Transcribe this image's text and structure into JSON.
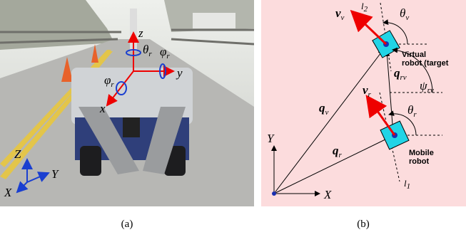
{
  "panel_a": {
    "robot_axes": {
      "z": "z",
      "theta": {
        "sym": "θ",
        "sub": "r"
      },
      "phi_right": {
        "sym": "φ",
        "sub": "r"
      },
      "y": "y",
      "phi_left": {
        "sym": "φ",
        "sub": "r"
      },
      "x": "x"
    },
    "world_axes": {
      "Z": "Z",
      "Y": "Y",
      "X": "X"
    }
  },
  "panel_b": {
    "v_v": {
      "sym": "v",
      "sub": "v"
    },
    "l_2": {
      "sym": "l",
      "sub": "2"
    },
    "theta_v": {
      "sym": "θ",
      "sub": "v"
    },
    "virtual_robot": [
      "Virtual",
      "robot (target"
    ],
    "q_rv": {
      "sym": "q",
      "sub": "rv"
    },
    "v_r": {
      "sym": "v",
      "sub": "r"
    },
    "psi_rv": {
      "sym": "ψ",
      "sub": "rv"
    },
    "theta_r": {
      "sym": "θ",
      "sub": "r"
    },
    "q_v": {
      "sym": "q",
      "sub": "v"
    },
    "q_r": {
      "sym": "q",
      "sub": "r"
    },
    "Y": "Y",
    "mobile_robot": [
      "Mobile",
      "robot"
    ],
    "l_1": {
      "sym": "l",
      "sub": "1"
    },
    "X": "X"
  },
  "captions": [
    "(a)",
    "(b)"
  ]
}
